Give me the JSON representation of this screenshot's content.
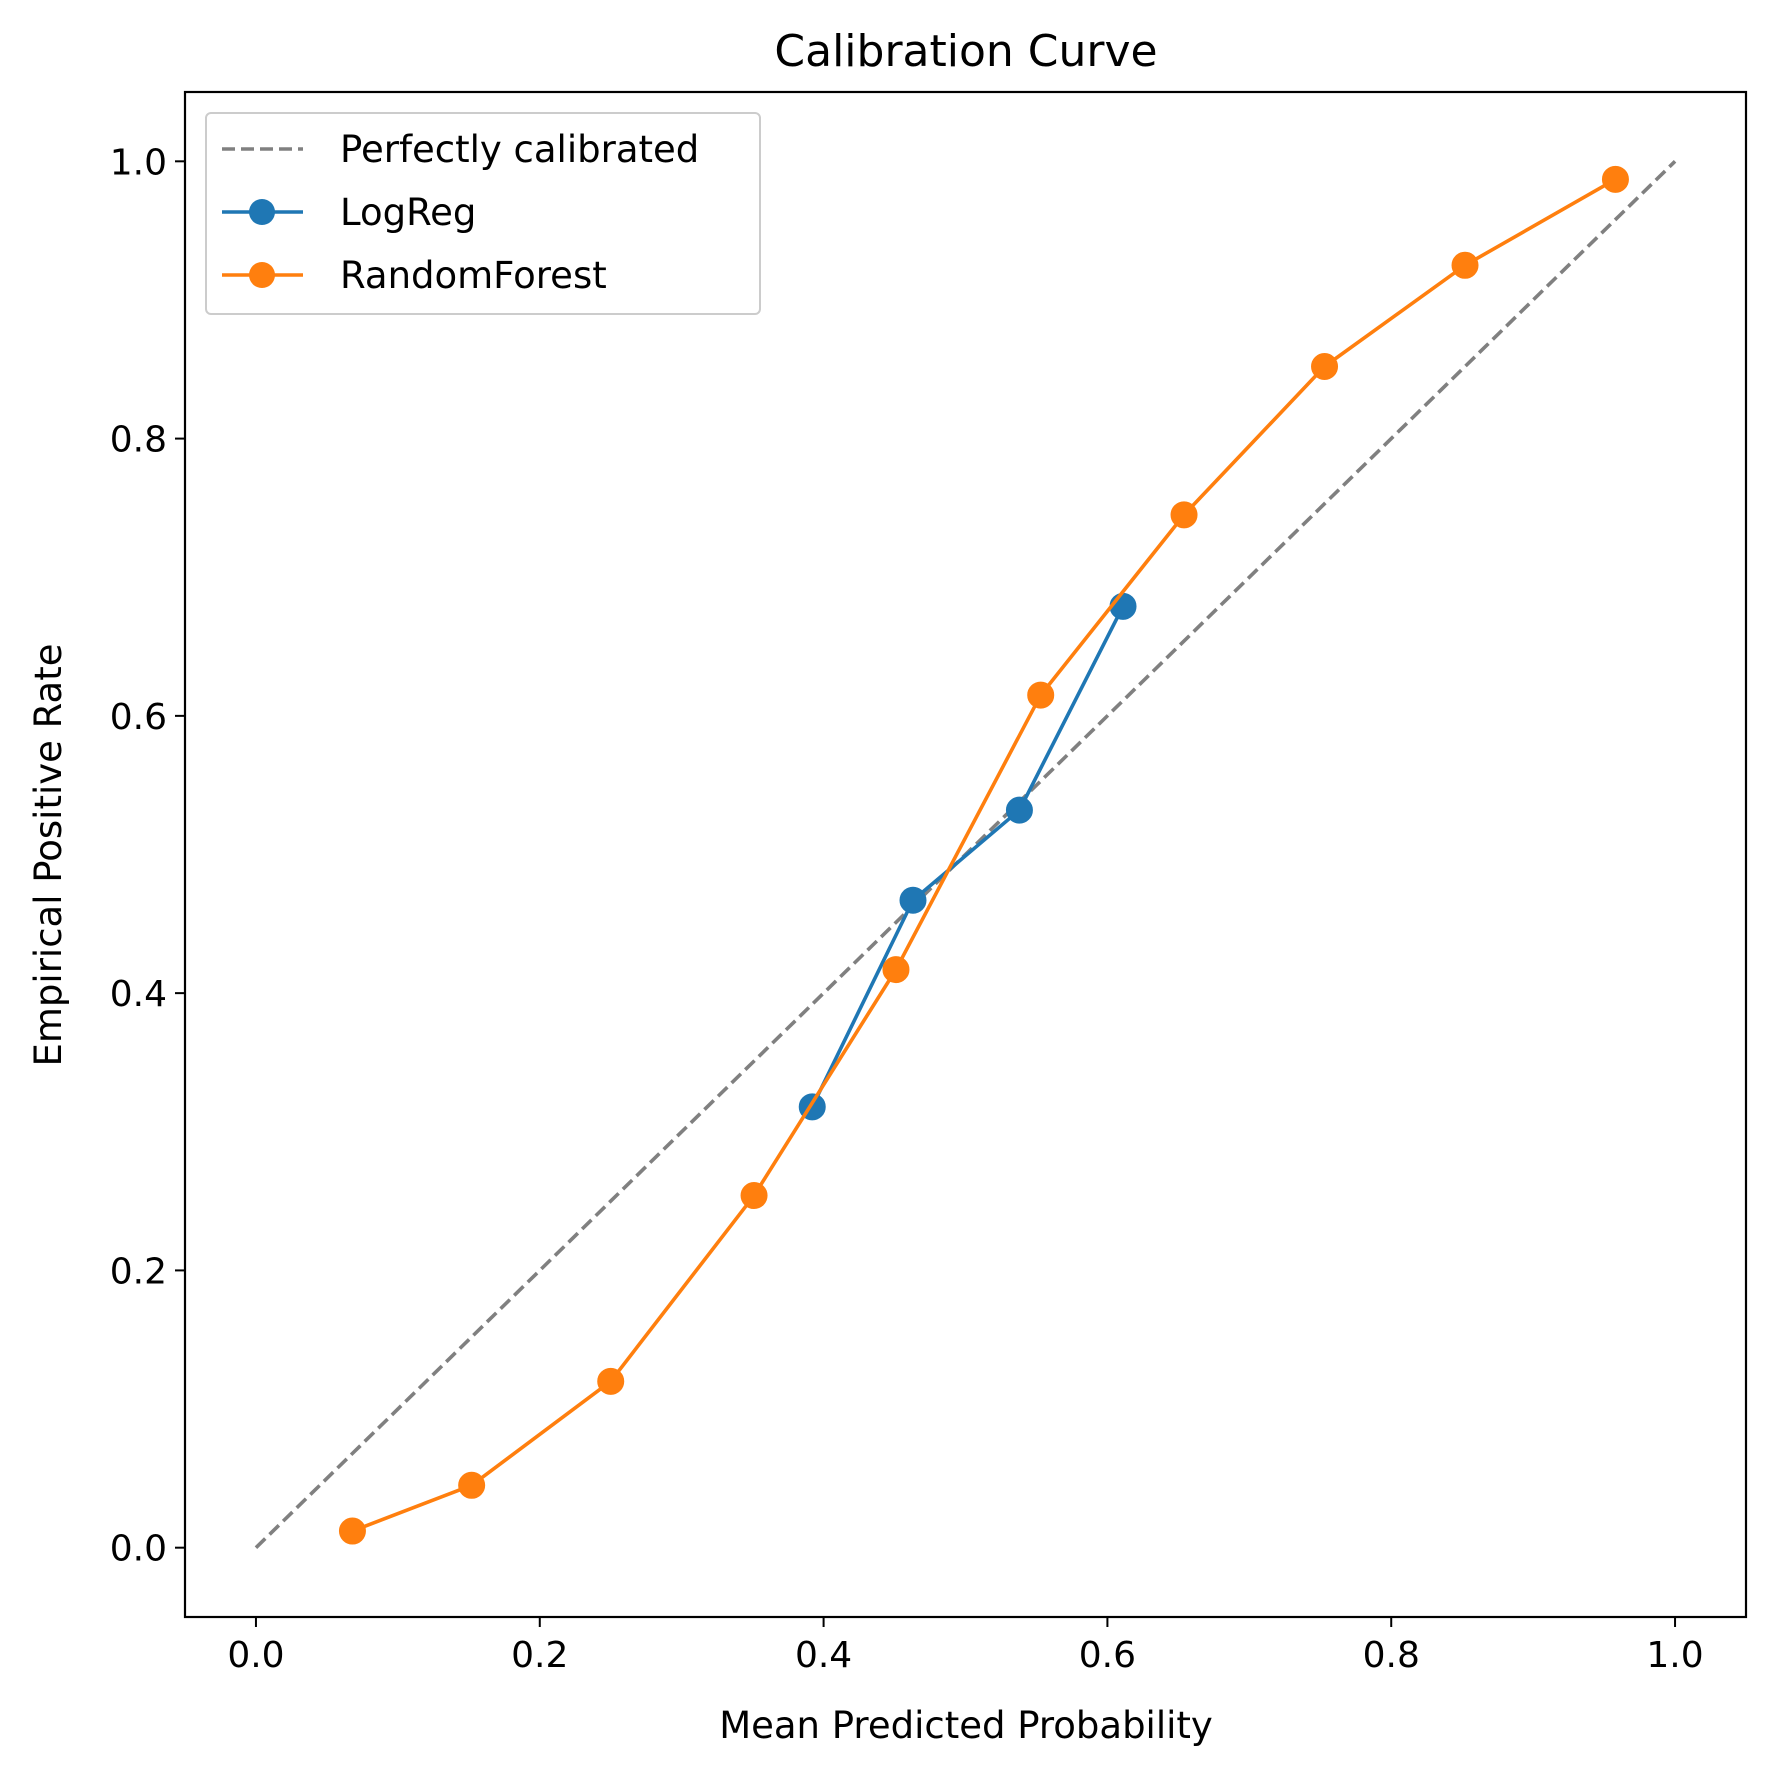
{
  "chart_data": {
    "type": "line",
    "title": "Calibration Curve",
    "xlabel": "Mean Predicted Probability",
    "ylabel": "Empirical Positive Rate",
    "xlim": [
      -0.05,
      1.05
    ],
    "ylim": [
      -0.05,
      1.05
    ],
    "xticks": [
      "0.0",
      "0.2",
      "0.4",
      "0.6",
      "0.8",
      "1.0"
    ],
    "yticks": [
      "0.0",
      "0.2",
      "0.4",
      "0.6",
      "0.8",
      "1.0"
    ],
    "grid": false,
    "legend_position": "upper-left",
    "series": [
      {
        "name": "Perfectly calibrated",
        "style": "dashed",
        "marker": false,
        "color": "#808080",
        "x": [
          0.0,
          1.0
        ],
        "y": [
          0.0,
          1.0
        ]
      },
      {
        "name": "LogReg",
        "style": "solid",
        "marker": true,
        "color": "#1f77b4",
        "x": [
          0.392,
          0.463,
          0.538,
          0.611
        ],
        "y": [
          0.318,
          0.467,
          0.532,
          0.679
        ]
      },
      {
        "name": "RandomForest",
        "style": "solid",
        "marker": true,
        "color": "#ff7f0e",
        "x": [
          0.068,
          0.152,
          0.25,
          0.351,
          0.451,
          0.553,
          0.654,
          0.753,
          0.852,
          0.958
        ],
        "y": [
          0.012,
          0.045,
          0.12,
          0.254,
          0.417,
          0.615,
          0.745,
          0.852,
          0.925,
          0.987
        ]
      }
    ]
  }
}
